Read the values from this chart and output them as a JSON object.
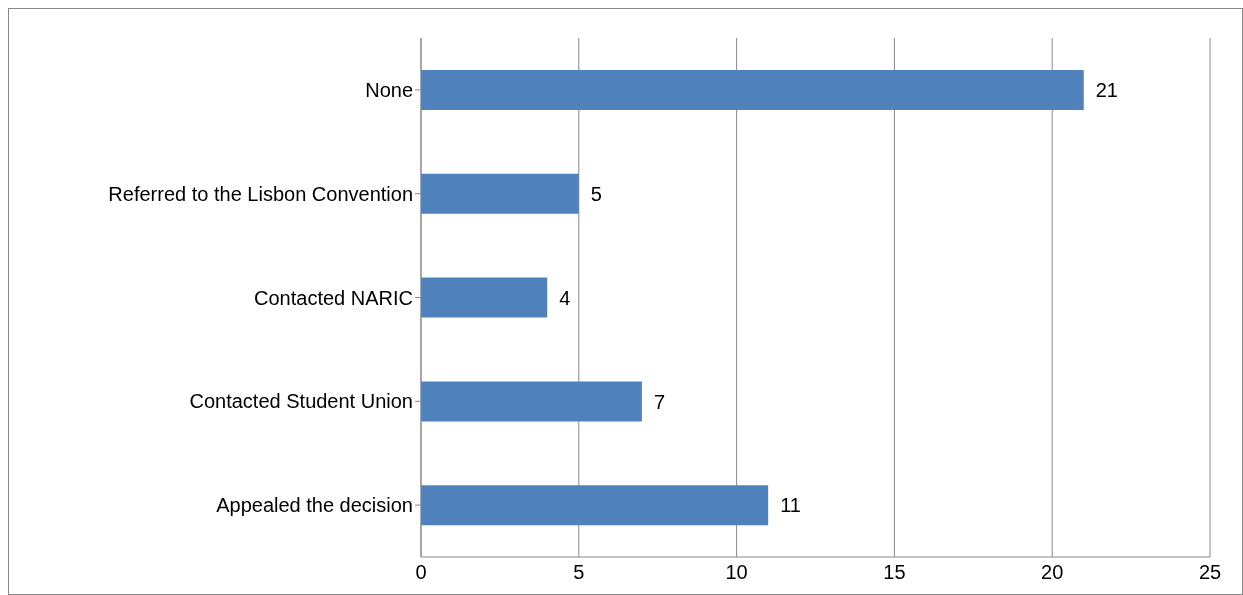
{
  "chart_data": {
    "type": "bar",
    "orientation": "horizontal",
    "categories": [
      "None",
      "Referred to the Lisbon Convention",
      "Contacted NARIC",
      "Contacted Student Union",
      "Appealed the decision"
    ],
    "values": [
      21,
      5,
      4,
      7,
      11
    ],
    "color": "#4f81bd",
    "xlim": [
      0,
      25
    ],
    "xticks": [
      0,
      5,
      10,
      15,
      20,
      25
    ],
    "grid": "x",
    "data_labels": true
  }
}
